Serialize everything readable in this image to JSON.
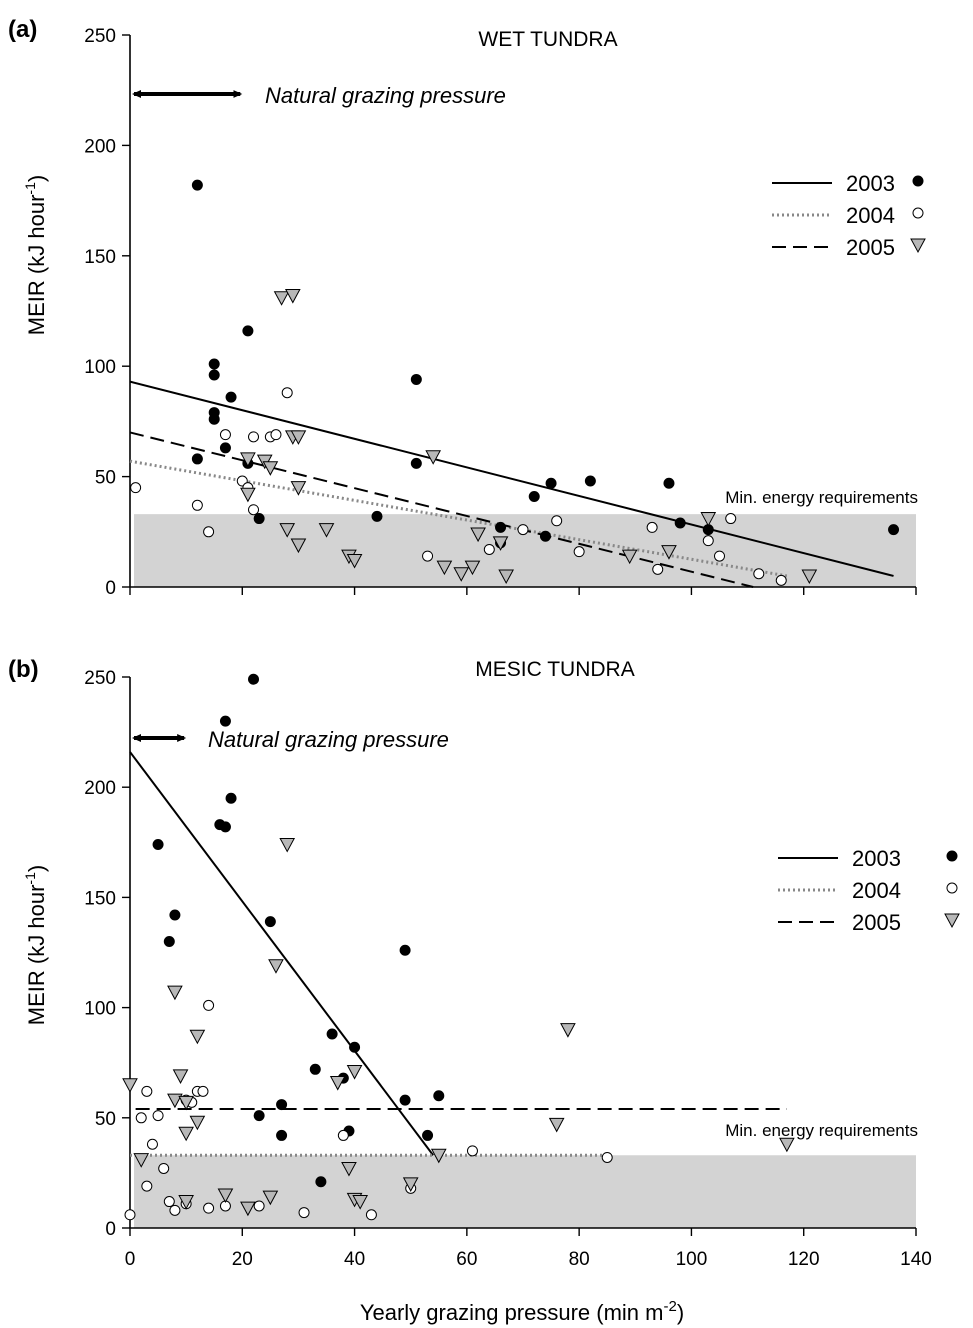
{
  "figure": {
    "xlabel": "Yearly grazing pressure (min m",
    "xlabel_sup": "-2",
    "xlabel_end": ")"
  },
  "chart_data": [
    {
      "panel": "(a)",
      "title": "WET TUNDRA",
      "type": "scatter",
      "ylabel": "MEIR (kJ hour",
      "ylabel_sup": "-1",
      "ylabel_end": ")",
      "xlim": [
        0,
        140
      ],
      "ylim": [
        0,
        250
      ],
      "yticks": [
        0,
        50,
        100,
        150,
        200,
        250
      ],
      "xticks": [
        20,
        40,
        60,
        80,
        100,
        120,
        140
      ],
      "natural_label": "Natural grazing pressure",
      "natural_range": [
        0,
        20
      ],
      "min_energy_label": "Min. energy requirements",
      "min_energy_value": 33,
      "series": [
        {
          "name": "2003",
          "marker": "filled-circle",
          "line": "solid",
          "fit": [
            [
              0,
              93
            ],
            [
              136,
              5
            ]
          ],
          "points": [
            [
              12,
              182
            ],
            [
              12,
              58
            ],
            [
              15,
              79
            ],
            [
              15,
              76
            ],
            [
              15,
              101
            ],
            [
              15,
              96
            ],
            [
              18,
              86
            ],
            [
              17,
              63
            ],
            [
              21,
              116
            ],
            [
              21,
              56
            ],
            [
              23,
              31
            ],
            [
              44,
              32
            ],
            [
              51,
              94
            ],
            [
              51,
              56
            ],
            [
              66,
              27
            ],
            [
              66,
              20
            ],
            [
              72,
              41
            ],
            [
              75,
              47
            ],
            [
              74,
              23
            ],
            [
              82,
              48
            ],
            [
              96,
              47
            ],
            [
              98,
              29
            ],
            [
              103,
              26
            ],
            [
              136,
              26
            ]
          ]
        },
        {
          "name": "2004",
          "marker": "open-circle",
          "line": "dotted",
          "fit": [
            [
              0,
              57
            ],
            [
              117,
              5
            ]
          ],
          "points": [
            [
              1,
              45
            ],
            [
              12,
              37
            ],
            [
              14,
              25
            ],
            [
              17,
              69
            ],
            [
              20,
              48
            ],
            [
              21,
              45
            ],
            [
              22,
              35
            ],
            [
              22,
              68
            ],
            [
              25,
              68
            ],
            [
              26,
              69
            ],
            [
              28,
              88
            ],
            [
              53,
              14
            ],
            [
              64,
              17
            ],
            [
              70,
              26
            ],
            [
              76,
              30
            ],
            [
              80,
              16
            ],
            [
              93,
              27
            ],
            [
              94,
              8
            ],
            [
              103,
              21
            ],
            [
              105,
              14
            ],
            [
              112,
              6
            ],
            [
              116,
              3
            ],
            [
              107,
              31
            ]
          ]
        },
        {
          "name": "2005",
          "marker": "triangle",
          "line": "dashed",
          "fit": [
            [
              0,
              70
            ],
            [
              111,
              0
            ]
          ],
          "points": [
            [
              21,
              58
            ],
            [
              21,
              42
            ],
            [
              24,
              57
            ],
            [
              25,
              54
            ],
            [
              27,
              131
            ],
            [
              29,
              132
            ],
            [
              29,
              68
            ],
            [
              30,
              68
            ],
            [
              30,
              45
            ],
            [
              28,
              26
            ],
            [
              30,
              19
            ],
            [
              35,
              26
            ],
            [
              39,
              14
            ],
            [
              40,
              12
            ],
            [
              54,
              59
            ],
            [
              56,
              9
            ],
            [
              59,
              6
            ],
            [
              61,
              9
            ],
            [
              62,
              24
            ],
            [
              66,
              20
            ],
            [
              67,
              5
            ],
            [
              96,
              16
            ],
            [
              89,
              14
            ],
            [
              103,
              31
            ],
            [
              121,
              5
            ]
          ]
        }
      ]
    },
    {
      "panel": "(b)",
      "title": "MESIC TUNDRA",
      "type": "scatter",
      "ylabel": "MEIR (kJ hour",
      "ylabel_sup": "-1",
      "ylabel_end": ")",
      "xlim": [
        0,
        140
      ],
      "ylim": [
        0,
        250
      ],
      "yticks": [
        0,
        50,
        100,
        150,
        200,
        250
      ],
      "xticks": [
        0,
        20,
        40,
        60,
        80,
        100,
        120,
        140
      ],
      "xticklabels": [
        "0",
        "20",
        "40",
        "60",
        "80",
        "100",
        "120",
        "140"
      ],
      "natural_label": "Natural grazing pressure",
      "natural_range": [
        0,
        10
      ],
      "min_energy_label": "Min. energy requirements",
      "min_energy_value": 33,
      "series": [
        {
          "name": "2003",
          "marker": "filled-circle",
          "line": "solid",
          "fit": [
            [
              0,
              216
            ],
            [
              54,
              33
            ]
          ],
          "points": [
            [
              5,
              174
            ],
            [
              7,
              130
            ],
            [
              8,
              142
            ],
            [
              16,
              183
            ],
            [
              17,
              182
            ],
            [
              17,
              230
            ],
            [
              18,
              195
            ],
            [
              22,
              249
            ],
            [
              23,
              51
            ],
            [
              25,
              139
            ],
            [
              27,
              56
            ],
            [
              27,
              42
            ],
            [
              33,
              72
            ],
            [
              34,
              21
            ],
            [
              36,
              88
            ],
            [
              38,
              68
            ],
            [
              39,
              44
            ],
            [
              40,
              82
            ],
            [
              49,
              126
            ],
            [
              49,
              58
            ],
            [
              53,
              42
            ],
            [
              55,
              60
            ]
          ]
        },
        {
          "name": "2004",
          "marker": "open-circle",
          "line": "dotted",
          "fit": [
            [
              0,
              33
            ],
            [
              85,
              33
            ]
          ],
          "points": [
            [
              0,
              6
            ],
            [
              2,
              50
            ],
            [
              3,
              62
            ],
            [
              3,
              19
            ],
            [
              4,
              38
            ],
            [
              5,
              51
            ],
            [
              6,
              27
            ],
            [
              7,
              12
            ],
            [
              8,
              8
            ],
            [
              10,
              58
            ],
            [
              10,
              11
            ],
            [
              11,
              57
            ],
            [
              12,
              62
            ],
            [
              13,
              62
            ],
            [
              14,
              101
            ],
            [
              14,
              9
            ],
            [
              17,
              10
            ],
            [
              23,
              10
            ],
            [
              31,
              7
            ],
            [
              38,
              42
            ],
            [
              43,
              6
            ],
            [
              50,
              18
            ],
            [
              61,
              35
            ],
            [
              85,
              32
            ]
          ]
        },
        {
          "name": "2005",
          "marker": "triangle",
          "line": "dashed",
          "fit": [
            [
              1,
              54
            ],
            [
              117,
              54
            ]
          ],
          "points": [
            [
              0,
              65
            ],
            [
              2,
              31
            ],
            [
              8,
              107
            ],
            [
              8,
              58
            ],
            [
              9,
              69
            ],
            [
              10,
              57
            ],
            [
              10,
              43
            ],
            [
              10,
              12
            ],
            [
              12,
              87
            ],
            [
              12,
              48
            ],
            [
              17,
              15
            ],
            [
              21,
              9
            ],
            [
              25,
              14
            ],
            [
              26,
              119
            ],
            [
              28,
              174
            ],
            [
              37,
              66
            ],
            [
              39,
              27
            ],
            [
              40,
              13
            ],
            [
              41,
              12
            ],
            [
              40,
              71
            ],
            [
              55,
              33
            ],
            [
              50,
              20
            ],
            [
              76,
              47
            ],
            [
              78,
              90
            ],
            [
              117,
              38
            ]
          ]
        }
      ]
    }
  ]
}
